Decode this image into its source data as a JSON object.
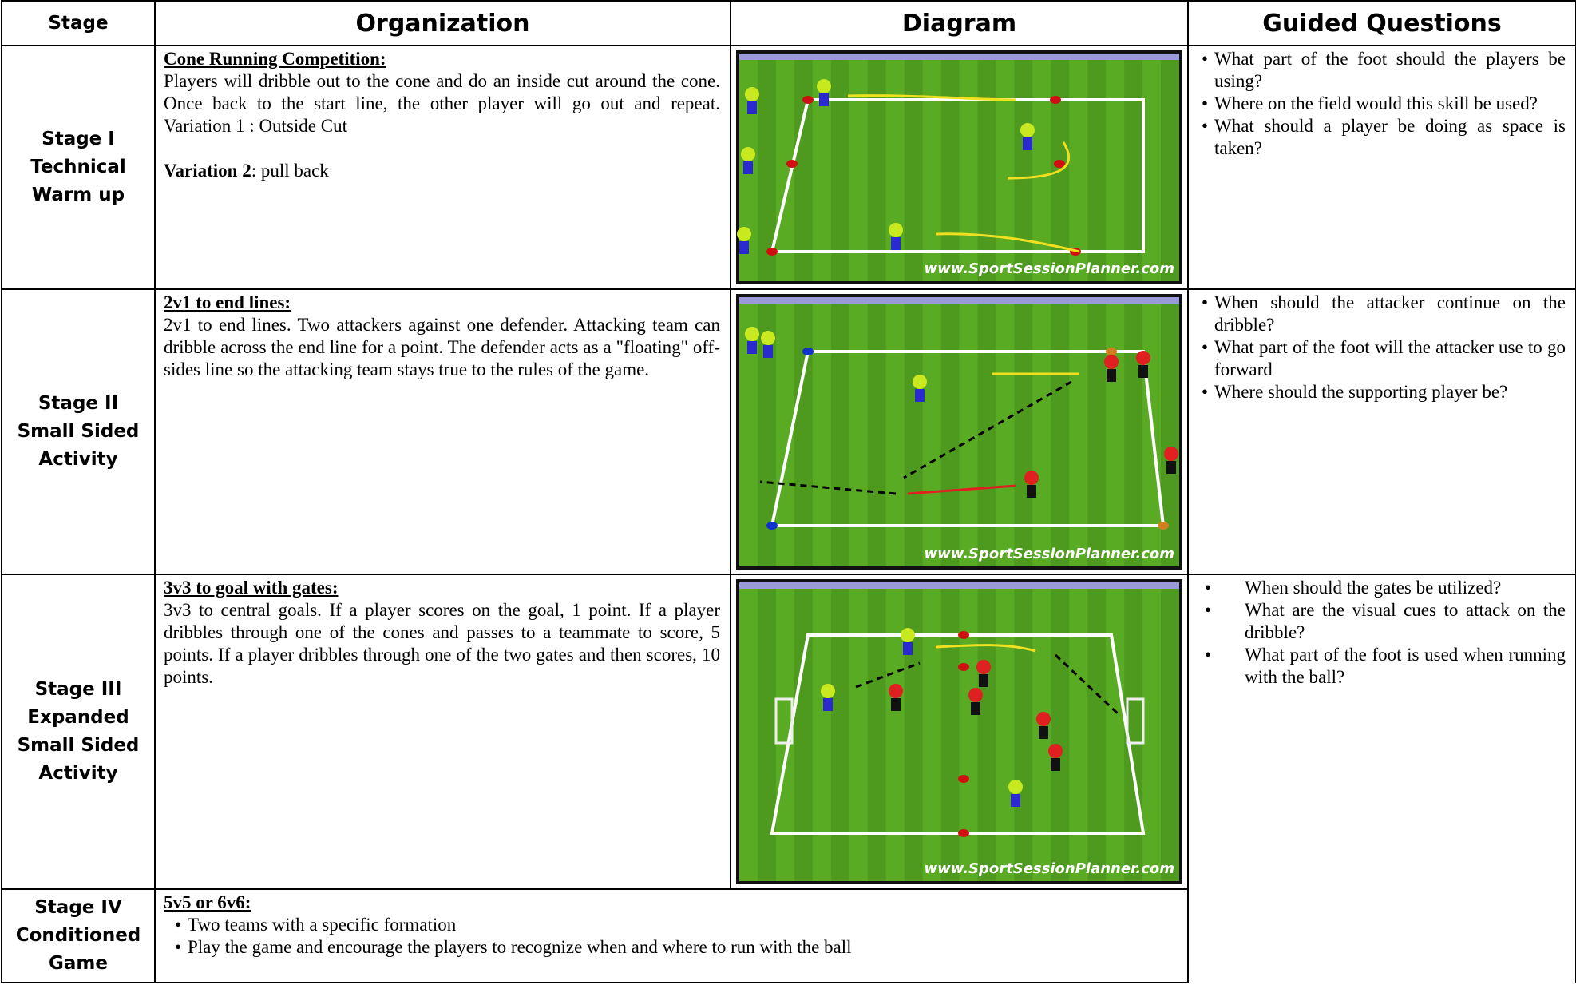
{
  "table": {
    "headers": [
      "Stage",
      "Organization",
      "Diagram",
      "Guided Questions"
    ],
    "diagram_watermark": "www.SportSessionPlanner.com",
    "rows": [
      {
        "stage": [
          "Stage I",
          "Technical",
          "Warm up"
        ],
        "title": "Cone Running Competition:",
        "text": "Players will dribble out to the cone and do an inside cut around the cone. Once back to the start line, the other player will go out and repeat. Variation 1 : Outside Cut",
        "variation": {
          "label": "Variation 2",
          "text": ": pull back"
        },
        "questions": [
          "What part of the foot should the players be using?",
          "Where on the field would this skill be used?",
          "What should a player be doing as space is taken?"
        ]
      },
      {
        "stage": [
          "Stage II",
          "Small Sided",
          "Activity"
        ],
        "title": "2v1 to end lines:",
        "text": "2v1 to end lines.  Two attackers against one defender. Attacking team can dribble across the end line for a point. The defender acts as a \"floating\" off-sides line so the attacking team stays true to the rules of the game.",
        "questions": [
          "When should the attacker continue on the dribble?",
          "What part of the foot will the attacker use to go forward",
          "Where should the supporting player be?"
        ]
      },
      {
        "stage": [
          "Stage III",
          "Expanded",
          "Small Sided",
          "Activity"
        ],
        "title": "3v3 to goal with gates:",
        "text": "3v3 to central goals. If a player scores on the goal, 1 point. If a player dribbles through one of the cones and passes to a teammate to score, 5 points. If a player dribbles through one of the two gates and then scores, 10 points.",
        "questions": [
          "When should the gates be utilized?",
          "What are the visual cues to attack on the dribble?",
          "What part of the foot is used when running with the ball?"
        ]
      },
      {
        "stage": [
          "Stage IV",
          "Conditioned",
          "Game"
        ],
        "title": "5v5 or 6v6:",
        "bullets": [
          "Two teams with a specific formation",
          "Play the game and encourage the players to recognize when and where to run with the ball"
        ]
      }
    ]
  }
}
